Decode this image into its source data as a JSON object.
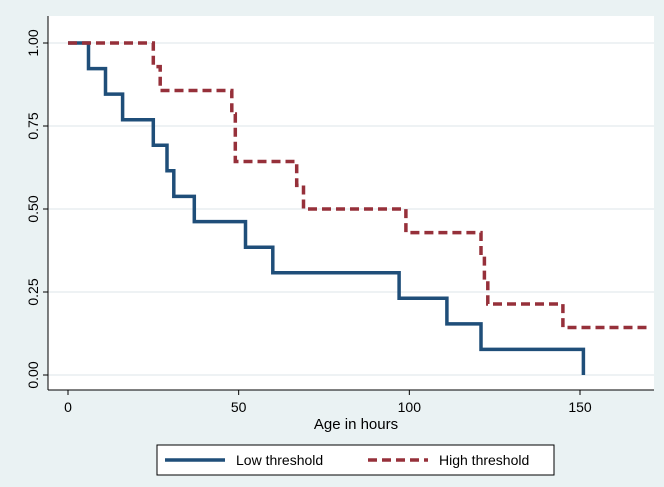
{
  "chart_data": {
    "type": "line",
    "subtype": "step (Kaplan-Meier survival curves)",
    "title": "",
    "xlabel": "Age in hours",
    "ylabel": "",
    "xlim": [
      0,
      170
    ],
    "ylim": [
      0,
      1
    ],
    "x_ticks": [
      0,
      50,
      100,
      150
    ],
    "x_tick_labels": [
      "0",
      "50",
      "100",
      "150"
    ],
    "y_ticks": [
      0,
      0.25,
      0.5,
      0.75,
      1
    ],
    "y_tick_labels": [
      "0.00",
      "0.25",
      "0.50",
      "0.75",
      "1.00"
    ],
    "grid": "horizontal",
    "legend_placement": "bottom",
    "colors": {
      "background": "#eaf2f3",
      "plot_background": "#ffffff",
      "low_threshold": "#1f4e79",
      "high_threshold": "#96303a"
    },
    "series": [
      {
        "name": "Low threshold",
        "style": "solid",
        "points": [
          [
            0,
            1
          ],
          [
            6,
            1
          ],
          [
            6,
            0.923
          ],
          [
            11,
            0.923
          ],
          [
            11,
            0.846
          ],
          [
            16,
            0.846
          ],
          [
            16,
            0.769
          ],
          [
            25,
            0.769
          ],
          [
            25,
            0.692
          ],
          [
            29,
            0.692
          ],
          [
            29,
            0.615
          ],
          [
            31,
            0.615
          ],
          [
            31,
            0.538
          ],
          [
            37,
            0.538
          ],
          [
            37,
            0.462
          ],
          [
            52,
            0.462
          ],
          [
            52,
            0.385
          ],
          [
            60,
            0.385
          ],
          [
            60,
            0.308
          ],
          [
            97,
            0.308
          ],
          [
            97,
            0.231
          ],
          [
            111,
            0.231
          ],
          [
            111,
            0.154
          ],
          [
            121,
            0.154
          ],
          [
            121,
            0.077
          ],
          [
            151,
            0.077
          ],
          [
            151,
            0
          ]
        ]
      },
      {
        "name": "High threshold",
        "style": "dashed",
        "points": [
          [
            0,
            1
          ],
          [
            25,
            1
          ],
          [
            25,
            0.929
          ],
          [
            27,
            0.929
          ],
          [
            27,
            0.857
          ],
          [
            48,
            0.857
          ],
          [
            48,
            0.786
          ],
          [
            49,
            0.786
          ],
          [
            49,
            0.643
          ],
          [
            67,
            0.643
          ],
          [
            67,
            0.571
          ],
          [
            69,
            0.571
          ],
          [
            69,
            0.5
          ],
          [
            99,
            0.5
          ],
          [
            99,
            0.429
          ],
          [
            121,
            0.429
          ],
          [
            121,
            0.357
          ],
          [
            122,
            0.357
          ],
          [
            122,
            0.286
          ],
          [
            123,
            0.286
          ],
          [
            123,
            0.214
          ],
          [
            145,
            0.214
          ],
          [
            145,
            0.143
          ],
          [
            170,
            0.143
          ]
        ]
      }
    ]
  }
}
